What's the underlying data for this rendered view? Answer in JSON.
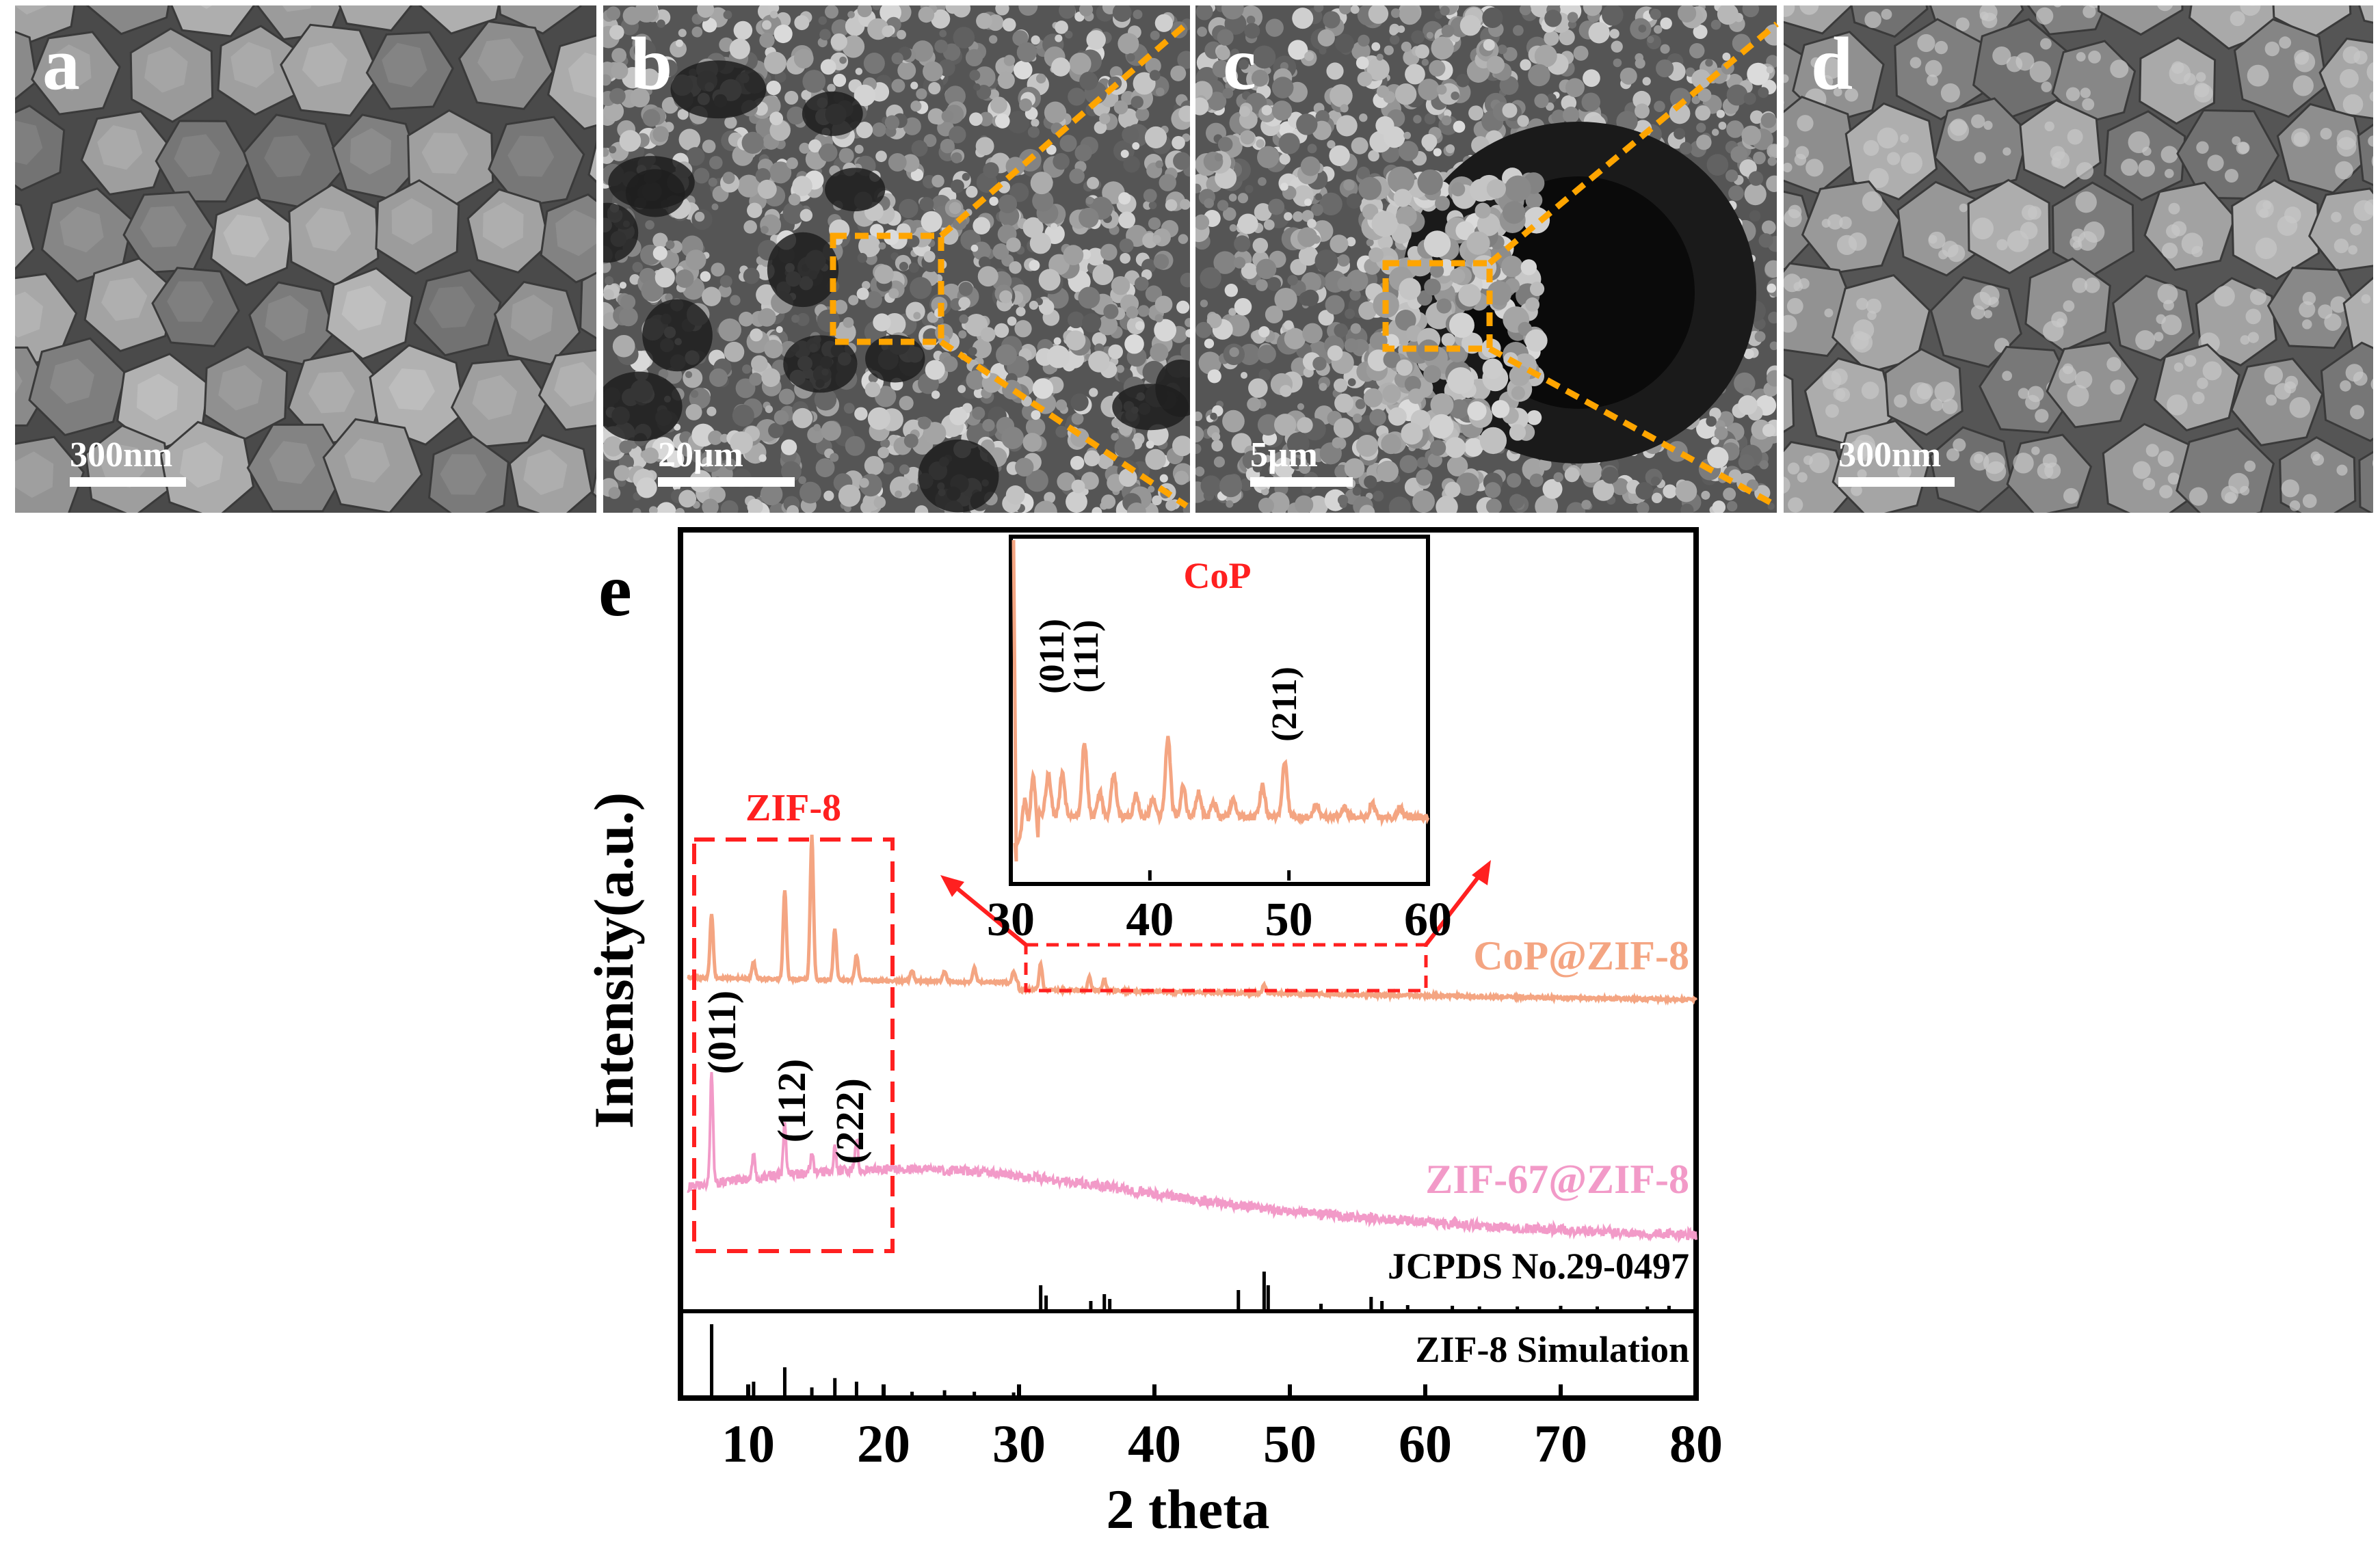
{
  "panels": [
    {
      "letter": "a",
      "scale": "300nm"
    },
    {
      "letter": "b",
      "scale": "20μm"
    },
    {
      "letter": "c",
      "scale": "5μm"
    },
    {
      "letter": "d",
      "scale": "300nm"
    }
  ],
  "colors": {
    "cop": "#f4a582",
    "zif67": "#f29ac8",
    "red": "#ff2020",
    "orange": "#ffa500",
    "black": "#000000"
  },
  "chart_data": {
    "type": "line",
    "panel_letter": "e",
    "xlabel": "2 theta",
    "ylabel": "Intensity(a.u.)",
    "xlim": [
      5,
      80
    ],
    "xticks": [
      10,
      20,
      30,
      40,
      50,
      60,
      70,
      80
    ],
    "series": [
      {
        "name": "CoP@ZIF-8",
        "color": "#f4a582",
        "peaks": [
          [
            7.3,
            0.45
          ],
          [
            10.4,
            0.12
          ],
          [
            12.7,
            0.62
          ],
          [
            14.7,
            1.0
          ],
          [
            16.4,
            0.35
          ],
          [
            18.0,
            0.18
          ],
          [
            22.1,
            0.08
          ],
          [
            24.5,
            0.07
          ],
          [
            26.7,
            0.1
          ],
          [
            29.6,
            0.08
          ],
          [
            31.6,
            0.18
          ],
          [
            35.2,
            0.1
          ],
          [
            36.3,
            0.08
          ],
          [
            48.1,
            0.06
          ]
        ]
      },
      {
        "name": "ZIF-67@ZIF-8",
        "color": "#f29ac8",
        "peaks": [
          [
            7.3,
            1.0
          ],
          [
            10.4,
            0.22
          ],
          [
            12.7,
            0.45
          ],
          [
            14.7,
            0.18
          ],
          [
            16.4,
            0.2
          ],
          [
            18.0,
            0.25
          ]
        ]
      },
      {
        "name": "JCPDS No.29-0497",
        "sticks": [
          [
            31.6,
            0.35
          ],
          [
            32.0,
            0.2
          ],
          [
            35.3,
            0.12
          ],
          [
            36.3,
            0.22
          ],
          [
            36.7,
            0.15
          ],
          [
            46.2,
            0.28
          ],
          [
            48.1,
            0.55
          ],
          [
            48.4,
            0.35
          ],
          [
            52.3,
            0.08
          ],
          [
            56.0,
            0.18
          ],
          [
            56.8,
            0.12
          ],
          [
            58.7,
            0.06
          ],
          [
            62.0,
            0.05
          ],
          [
            64.0,
            0.04
          ],
          [
            66.8,
            0.04
          ],
          [
            70.0,
            0.05
          ],
          [
            72.7,
            0.04
          ],
          [
            76.4,
            0.04
          ],
          [
            78.0,
            0.05
          ]
        ]
      },
      {
        "name": "ZIF-8 Simulation",
        "sticks": [
          [
            7.3,
            1.0
          ],
          [
            10.4,
            0.2
          ],
          [
            12.7,
            0.4
          ],
          [
            14.7,
            0.12
          ],
          [
            16.4,
            0.25
          ],
          [
            18.0,
            0.2
          ],
          [
            22.1,
            0.06
          ],
          [
            24.5,
            0.08
          ],
          [
            26.7,
            0.06
          ],
          [
            29.6,
            0.05
          ]
        ]
      }
    ],
    "peak_labels": [
      {
        "text": "(011)",
        "x": 7.3
      },
      {
        "text": "(112)",
        "x": 12.7
      },
      {
        "text": "(222)",
        "x": 18.0
      }
    ],
    "zif8_box_label": "ZIF-8",
    "inset": {
      "title": "CoP",
      "xlim": [
        30,
        60
      ],
      "xticks": [
        30,
        40,
        50,
        60
      ],
      "peak_labels": [
        {
          "text": "(011)",
          "x": 31.6
        },
        {
          "text": "(111)",
          "x": 35.3
        },
        {
          "text": "(211)",
          "x": 48.1
        }
      ],
      "peaks": [
        [
          31.0,
          0.35
        ],
        [
          31.6,
          0.55
        ],
        [
          32.7,
          0.35
        ],
        [
          33.7,
          0.35
        ],
        [
          35.3,
          0.6
        ],
        [
          36.4,
          0.2
        ],
        [
          37.4,
          0.35
        ],
        [
          39.0,
          0.18
        ],
        [
          40.2,
          0.15
        ],
        [
          41.3,
          0.65
        ],
        [
          42.4,
          0.25
        ],
        [
          43.5,
          0.2
        ],
        [
          44.6,
          0.12
        ],
        [
          46.0,
          0.15
        ],
        [
          48.1,
          0.25
        ],
        [
          49.7,
          0.45
        ],
        [
          52.0,
          0.1
        ],
        [
          54.0,
          0.08
        ],
        [
          56.0,
          0.12
        ],
        [
          58.0,
          0.08
        ]
      ]
    }
  }
}
